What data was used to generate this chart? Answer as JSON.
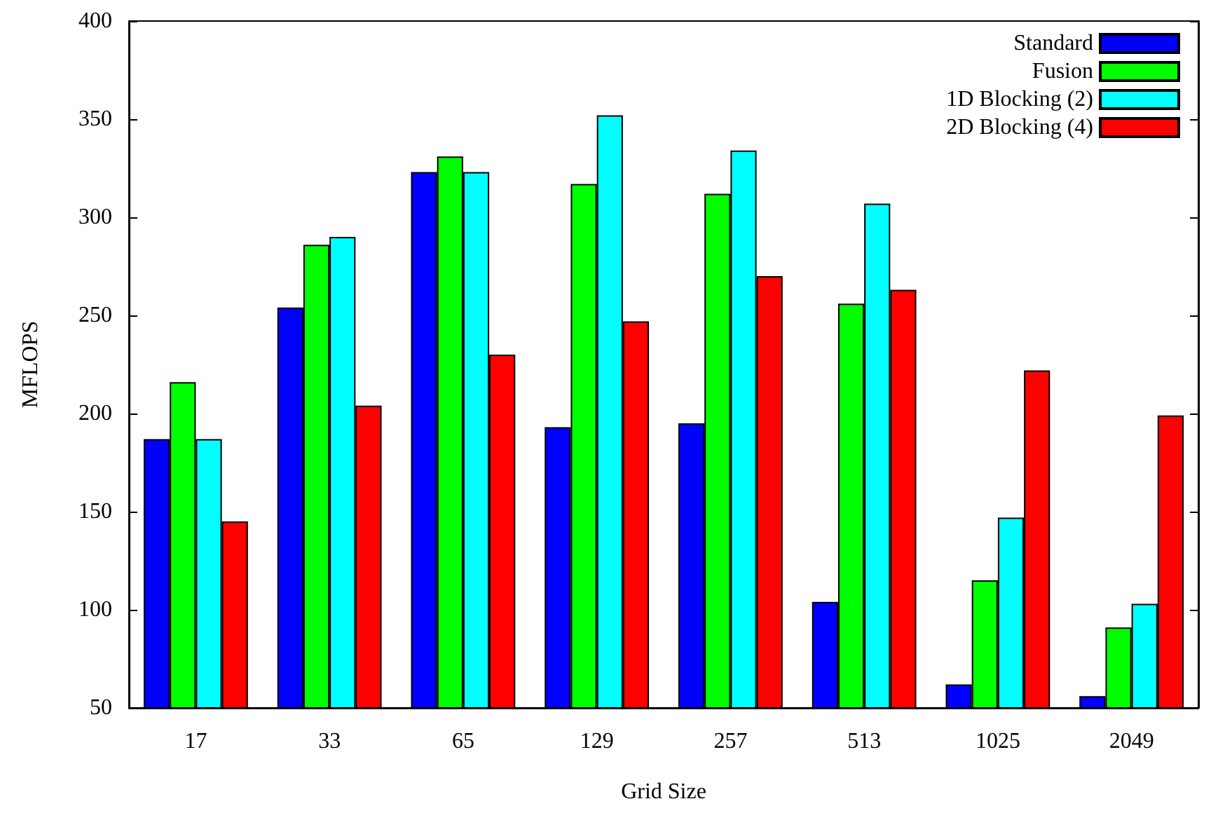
{
  "chart_data": {
    "type": "bar",
    "xlabel": "Grid Size",
    "ylabel": "MFLOPS",
    "categories": [
      "17",
      "33",
      "65",
      "129",
      "257",
      "513",
      "1025",
      "2049"
    ],
    "series": [
      {
        "name": "Standard",
        "color": "#0000ff",
        "values": [
          187,
          254,
          323,
          193,
          195,
          104,
          62,
          56
        ]
      },
      {
        "name": "Fusion",
        "color": "#00ff00",
        "values": [
          216,
          286,
          331,
          317,
          312,
          256,
          115,
          91
        ]
      },
      {
        "name": "1D Blocking (2)",
        "color": "#00ffff",
        "values": [
          187,
          290,
          323,
          352,
          334,
          307,
          147,
          103
        ]
      },
      {
        "name": "2D Blocking (4)",
        "color": "#ff0000",
        "values": [
          145,
          204,
          230,
          247,
          270,
          263,
          222,
          199
        ]
      }
    ],
    "ylim": [
      50,
      400
    ],
    "yticks": [
      50,
      100,
      150,
      200,
      250,
      300,
      350,
      400
    ],
    "grid": false,
    "legend": "top right"
  }
}
